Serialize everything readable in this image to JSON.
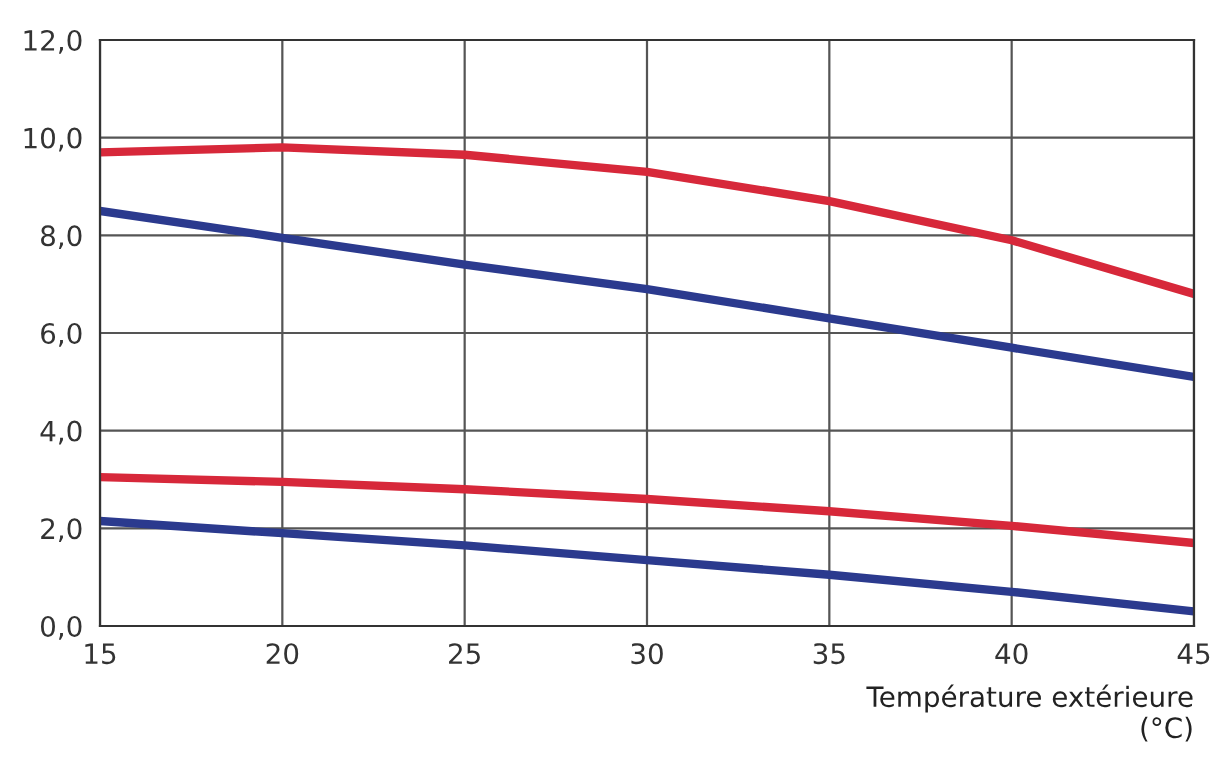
{
  "chart_data": {
    "type": "line",
    "xlabel": "Température extérieure\n(°C)",
    "x": [
      15,
      20,
      25,
      30,
      35,
      40,
      45
    ],
    "series": [
      {
        "color": "#d7283a",
        "values": [
          9.7,
          9.8,
          9.65,
          9.3,
          8.7,
          7.9,
          6.8
        ]
      },
      {
        "color": "#2b3a8e",
        "values": [
          8.5,
          7.95,
          7.4,
          6.9,
          6.3,
          5.7,
          5.1
        ]
      },
      {
        "color": "#d7283a",
        "values": [
          3.05,
          2.95,
          2.8,
          2.6,
          2.35,
          2.05,
          1.7
        ]
      },
      {
        "color": "#2b3a8e",
        "values": [
          2.15,
          1.9,
          1.65,
          1.35,
          1.05,
          0.7,
          0.3
        ]
      }
    ],
    "xlim": [
      15,
      45
    ],
    "xticks": [
      15,
      20,
      25,
      30,
      35,
      40,
      45
    ],
    "ylim": [
      0,
      12
    ],
    "yticks": [
      {
        "value": 0,
        "label": "0,0"
      },
      {
        "value": 2,
        "label": "2,0"
      },
      {
        "value": 4,
        "label": "4,0"
      },
      {
        "value": 6,
        "label": "6,0"
      },
      {
        "value": 8,
        "label": "8,0"
      },
      {
        "value": 10,
        "label": "10,0"
      },
      {
        "value": 12,
        "label": "12,0"
      }
    ],
    "grid": true,
    "marker": "none",
    "line_style": "solid",
    "legend": false
  }
}
